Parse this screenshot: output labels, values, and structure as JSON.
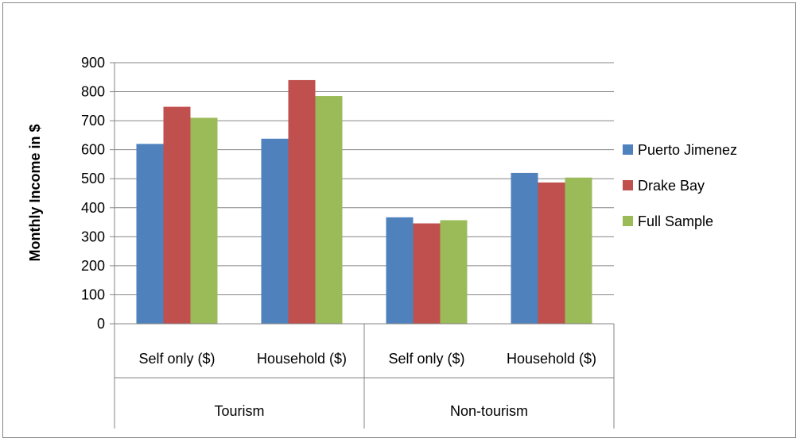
{
  "chart_data": {
    "type": "bar",
    "title": "",
    "xlabel": "",
    "ylabel": "Monthly Income in $",
    "ylim": [
      0,
      900
    ],
    "y_ticks": [
      0,
      100,
      200,
      300,
      400,
      500,
      600,
      700,
      800,
      900
    ],
    "grid": true,
    "legend_position": "right",
    "groups": [
      {
        "label": "Tourism",
        "categories": [
          "Self only ($)",
          "Household ($)"
        ]
      },
      {
        "label": "Non-tourism",
        "categories": [
          "Self only ($)",
          "Household ($)"
        ]
      }
    ],
    "categories": [
      "Self only ($)",
      "Household ($)",
      "Self only ($)",
      "Household ($)"
    ],
    "series": [
      {
        "name": "Puerto Jimenez",
        "color": "#4F81BD",
        "values": [
          620,
          638,
          367,
          520
        ]
      },
      {
        "name": "Drake Bay",
        "color": "#C0504D",
        "values": [
          748,
          840,
          346,
          487
        ]
      },
      {
        "name": "Full Sample",
        "color": "#9BBB59",
        "values": [
          710,
          785,
          357,
          504
        ]
      }
    ]
  }
}
